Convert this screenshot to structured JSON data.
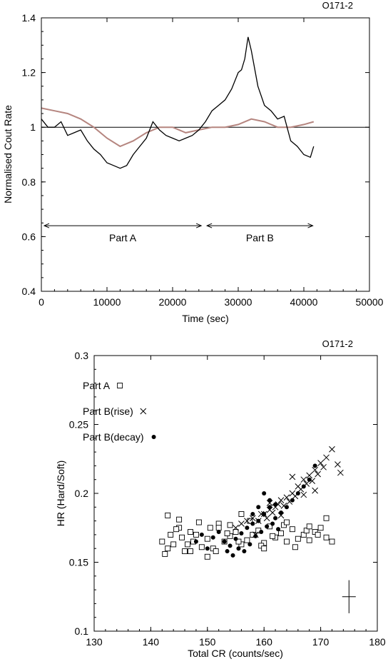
{
  "chart_data": [
    {
      "type": "line",
      "tag": "O171-2",
      "xlabel": "Time (sec)",
      "ylabel": "Normalised Cout Rate",
      "xlim": [
        0,
        50000
      ],
      "ylim": [
        0.4,
        1.4
      ],
      "x_ticks": [
        "0",
        "10000",
        "20000",
        "30000",
        "40000",
        "50000"
      ],
      "y_ticks": [
        "0.4",
        "0.6",
        "0.8",
        "1",
        "1.2",
        "1.4"
      ],
      "reference_line": 1.0,
      "colors": {
        "series_1": "#000000",
        "series_2": "#b5857f"
      },
      "series": [
        {
          "key": "series_1",
          "x": [
            0,
            1000,
            2000,
            3000,
            4000,
            5000,
            6000,
            7000,
            8000,
            9000,
            10000,
            11000,
            12000,
            13000,
            14000,
            15000,
            16000,
            17000,
            18000,
            19000,
            20000,
            21000,
            22000,
            23000,
            24000,
            25000,
            26000,
            27000,
            28000,
            29000,
            30000,
            30500,
            31000,
            31500,
            32000,
            33000,
            34000,
            35000,
            36000,
            37000,
            38000,
            39000,
            40000,
            41000,
            41500
          ],
          "y": [
            1.03,
            1.0,
            1.0,
            1.02,
            0.97,
            0.98,
            0.99,
            0.95,
            0.92,
            0.9,
            0.87,
            0.86,
            0.85,
            0.86,
            0.9,
            0.93,
            0.96,
            1.02,
            0.99,
            0.97,
            0.96,
            0.95,
            0.96,
            0.97,
            0.99,
            1.02,
            1.06,
            1.08,
            1.1,
            1.14,
            1.2,
            1.21,
            1.25,
            1.33,
            1.28,
            1.15,
            1.08,
            1.06,
            1.03,
            1.04,
            0.95,
            0.93,
            0.9,
            0.89,
            0.93
          ]
        },
        {
          "key": "series_2",
          "x": [
            0,
            2000,
            4000,
            6000,
            8000,
            10000,
            12000,
            14000,
            16000,
            18000,
            20000,
            22000,
            24000,
            26000,
            28000,
            30000,
            32000,
            34000,
            36000,
            38000,
            40000,
            41500
          ],
          "y": [
            1.07,
            1.06,
            1.05,
            1.03,
            1.0,
            0.96,
            0.93,
            0.95,
            0.98,
            1.0,
            1.0,
            0.98,
            0.99,
            1.0,
            1.0,
            1.01,
            1.03,
            1.02,
            1.0,
            1.0,
            1.01,
            1.02
          ]
        }
      ],
      "annotations": [
        {
          "label": "Part A",
          "x_start": 0,
          "x_end": 24800,
          "y": 0.64
        },
        {
          "label": "Part B",
          "x_start": 24800,
          "x_end": 41800,
          "y": 0.64
        }
      ]
    },
    {
      "type": "scatter",
      "tag": "O171-2",
      "xlabel": "Total CR (counts/sec)",
      "ylabel": "HR (Hard/Soft)",
      "xlim": [
        130,
        180
      ],
      "ylim": [
        0.1,
        0.3
      ],
      "x_ticks": [
        "130",
        "140",
        "150",
        "160",
        "170",
        "180"
      ],
      "y_ticks": [
        "0.1",
        "0.15",
        "0.2",
        "0.25",
        "0.3"
      ],
      "legend_position": "top-left",
      "series": [
        {
          "name": "Part A",
          "marker": "open-square",
          "x": [
            142,
            143,
            143.5,
            144,
            145,
            145.5,
            146,
            147,
            147.5,
            148,
            149,
            150,
            150.5,
            151,
            152,
            153,
            154,
            155,
            156,
            157,
            158,
            159,
            160,
            161,
            162,
            163,
            164,
            165,
            166,
            167,
            168,
            169,
            170,
            171,
            172,
            142.5,
            144.5,
            146.5,
            148.5,
            151.5,
            153.5,
            155.5,
            157.5,
            159.5,
            161.5,
            163.5,
            165.5,
            167.5,
            169.5,
            143,
            147,
            152,
            156,
            160,
            164,
            168,
            171,
            145,
            150,
            154
          ],
          "y": [
            0.165,
            0.16,
            0.17,
            0.163,
            0.175,
            0.168,
            0.158,
            0.172,
            0.165,
            0.17,
            0.161,
            0.167,
            0.175,
            0.16,
            0.178,
            0.165,
            0.169,
            0.172,
            0.163,
            0.166,
            0.17,
            0.173,
            0.164,
            0.176,
            0.168,
            0.171,
            0.165,
            0.174,
            0.167,
            0.17,
            0.166,
            0.172,
            0.175,
            0.168,
            0.165,
            0.156,
            0.174,
            0.163,
            0.179,
            0.158,
            0.171,
            0.165,
            0.18,
            0.162,
            0.169,
            0.177,
            0.161,
            0.173,
            0.17,
            0.184,
            0.158,
            0.175,
            0.185,
            0.16,
            0.179,
            0.176,
            0.182,
            0.181,
            0.154,
            0.177
          ]
        },
        {
          "name": "Part B(rise)",
          "marker": "cross",
          "x": [
            155,
            156,
            157,
            158,
            159,
            160,
            160.5,
            161,
            161.5,
            162,
            162.5,
            163,
            163.5,
            164,
            164.5,
            165,
            165.5,
            166,
            166.5,
            167,
            167.5,
            168,
            168.5,
            169,
            169.5,
            170,
            170.5,
            171,
            172,
            173,
            173.5,
            158.5,
            159.5,
            161,
            163,
            165,
            167,
            169
          ],
          "y": [
            0.175,
            0.178,
            0.18,
            0.182,
            0.18,
            0.185,
            0.182,
            0.188,
            0.186,
            0.19,
            0.192,
            0.195,
            0.191,
            0.197,
            0.194,
            0.2,
            0.198,
            0.205,
            0.203,
            0.21,
            0.207,
            0.213,
            0.209,
            0.217,
            0.214,
            0.222,
            0.219,
            0.226,
            0.232,
            0.221,
            0.215,
            0.17,
            0.185,
            0.193,
            0.184,
            0.212,
            0.199,
            0.202
          ]
        },
        {
          "name": "Part B(decay)",
          "marker": "filled-circle",
          "x": [
            148,
            149,
            150,
            151,
            152,
            153,
            153.5,
            154,
            154.5,
            155,
            155.5,
            156,
            156.5,
            157,
            157.5,
            158,
            158.5,
            159,
            159.5,
            160,
            160.5,
            161,
            161.5,
            162,
            162.5,
            163,
            164,
            165,
            166,
            167,
            168,
            169,
            160,
            161,
            162,
            159,
            158
          ],
          "y": [
            0.165,
            0.17,
            0.16,
            0.168,
            0.172,
            0.165,
            0.158,
            0.162,
            0.155,
            0.167,
            0.16,
            0.171,
            0.158,
            0.175,
            0.163,
            0.178,
            0.169,
            0.18,
            0.172,
            0.185,
            0.176,
            0.19,
            0.178,
            0.182,
            0.174,
            0.186,
            0.19,
            0.195,
            0.2,
            0.205,
            0.21,
            0.22,
            0.2,
            0.195,
            0.192,
            0.19,
            0.185
          ]
        }
      ],
      "error_bar": {
        "x": 175,
        "y": 0.125,
        "dx": 1.2,
        "dy": 0.012
      }
    }
  ]
}
